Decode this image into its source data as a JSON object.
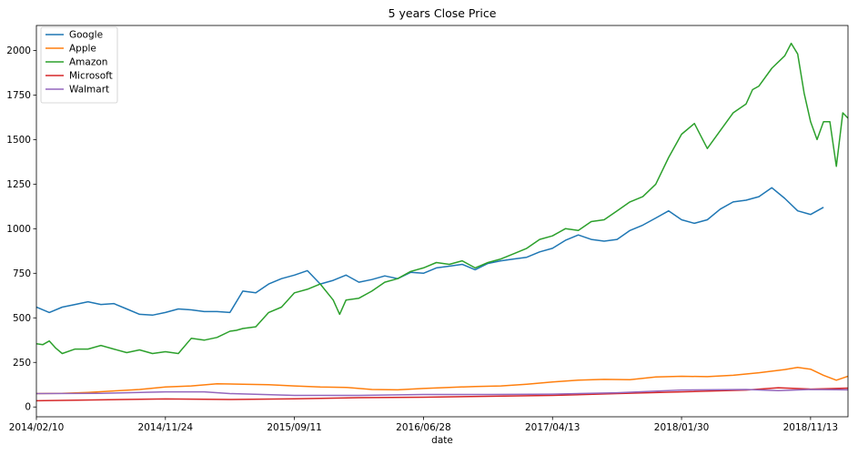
{
  "chart_data": {
    "type": "line",
    "title": "5 years Close Price",
    "xlabel": "date",
    "ylabel": "",
    "x_ticks": [
      "2014/02/10",
      "2014/11/24",
      "2015/09/11",
      "2016/06/28",
      "2017/04/13",
      "2018/01/30",
      "2018/11/13"
    ],
    "x_tick_positions": [
      0,
      200,
      400,
      600,
      800,
      1000,
      1200
    ],
    "xlim": [
      0,
      1258
    ],
    "ylim": [
      -55,
      2140
    ],
    "y_ticks": [
      0,
      250,
      500,
      750,
      1000,
      1250,
      1500,
      1750,
      2000
    ],
    "grid": false,
    "legend_position": "top-left",
    "series": [
      {
        "name": "Google",
        "color": "#1f77b4",
        "x": [
          0,
          20,
          40,
          60,
          80,
          100,
          120,
          140,
          160,
          180,
          200,
          220,
          240,
          260,
          280,
          300,
          320,
          340,
          360,
          380,
          400,
          420,
          440,
          460,
          480,
          500,
          520,
          540,
          560,
          580,
          600,
          620,
          640,
          660,
          680,
          700,
          720,
          740,
          760,
          780,
          800,
          820,
          840,
          860,
          880,
          900,
          920,
          940,
          960,
          980,
          1000,
          1020,
          1040,
          1060,
          1080,
          1100,
          1120,
          1140,
          1160,
          1180,
          1200,
          1220
        ],
        "values": [
          560,
          530,
          560,
          575,
          590,
          575,
          580,
          550,
          520,
          515,
          530,
          550,
          545,
          535,
          535,
          530,
          650,
          640,
          690,
          720,
          740,
          765,
          690,
          710,
          740,
          700,
          715,
          735,
          720,
          755,
          750,
          780,
          790,
          800,
          770,
          805,
          820,
          830,
          840,
          870,
          890,
          935,
          965,
          940,
          930,
          940,
          990,
          1020,
          1060,
          1100,
          1050,
          1030,
          1050,
          1110,
          1150,
          1160,
          1180,
          1230,
          1170,
          1100,
          1080,
          1120
        ]
      },
      {
        "name": "Apple",
        "color": "#ff7f0e",
        "x": [
          0,
          40,
          80,
          120,
          160,
          200,
          240,
          280,
          320,
          360,
          400,
          440,
          480,
          520,
          560,
          600,
          640,
          680,
          720,
          760,
          800,
          840,
          880,
          920,
          960,
          1000,
          1040,
          1080,
          1120,
          1160,
          1180,
          1200,
          1220,
          1240,
          1258
        ],
        "values": [
          75,
          76,
          82,
          90,
          98,
          112,
          118,
          130,
          128,
          125,
          118,
          112,
          110,
          98,
          96,
          104,
          110,
          115,
          118,
          128,
          140,
          150,
          155,
          153,
          168,
          172,
          170,
          178,
          192,
          210,
          222,
          212,
          178,
          150,
          172
        ]
      },
      {
        "name": "Amazon",
        "color": "#2ca02c",
        "x": [
          0,
          10,
          20,
          30,
          40,
          60,
          80,
          100,
          120,
          140,
          160,
          180,
          200,
          220,
          240,
          260,
          280,
          300,
          310,
          320,
          340,
          360,
          380,
          400,
          420,
          440,
          460,
          470,
          480,
          500,
          520,
          540,
          560,
          580,
          600,
          620,
          640,
          660,
          680,
          700,
          720,
          740,
          760,
          780,
          800,
          820,
          840,
          860,
          880,
          900,
          920,
          940,
          960,
          980,
          1000,
          1020,
          1040,
          1060,
          1080,
          1100,
          1110,
          1120,
          1140,
          1160,
          1170,
          1180,
          1190,
          1200,
          1210,
          1220,
          1230,
          1240,
          1250,
          1258
        ],
        "values": [
          355,
          350,
          370,
          330,
          300,
          325,
          325,
          345,
          325,
          305,
          320,
          300,
          310,
          300,
          385,
          375,
          390,
          425,
          430,
          440,
          450,
          530,
          560,
          640,
          660,
          690,
          600,
          520,
          600,
          610,
          650,
          700,
          720,
          760,
          780,
          810,
          800,
          820,
          780,
          810,
          830,
          860,
          890,
          940,
          960,
          1000,
          990,
          1040,
          1050,
          1100,
          1150,
          1180,
          1250,
          1400,
          1530,
          1590,
          1450,
          1550,
          1650,
          1700,
          1780,
          1800,
          1900,
          1970,
          2040,
          1980,
          1760,
          1600,
          1500,
          1600,
          1600,
          1350,
          1650,
          1620
        ]
      },
      {
        "name": "Microsoft",
        "color": "#d62728",
        "x": [
          0,
          100,
          200,
          300,
          400,
          500,
          600,
          700,
          800,
          900,
          1000,
          1100,
          1150,
          1200,
          1258
        ],
        "values": [
          35,
          40,
          45,
          42,
          46,
          52,
          55,
          60,
          65,
          75,
          85,
          95,
          108,
          100,
          106
        ]
      },
      {
        "name": "Walmart",
        "color": "#9467bd",
        "x": [
          0,
          100,
          200,
          260,
          300,
          400,
          500,
          600,
          700,
          800,
          900,
          1000,
          1100,
          1150,
          1200,
          1258
        ],
        "values": [
          75,
          76,
          85,
          85,
          75,
          65,
          65,
          70,
          70,
          72,
          80,
          95,
          98,
          92,
          98,
          96
        ]
      }
    ]
  }
}
